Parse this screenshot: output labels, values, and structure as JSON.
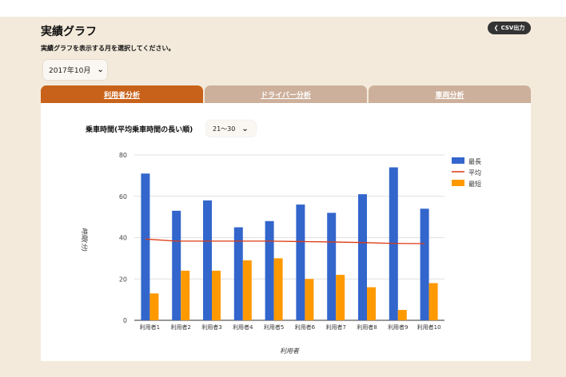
{
  "header": {
    "title": "実績グラフ",
    "csv_button": "CSV出力",
    "csv_icon": "chevron-left-icon",
    "instruction": "実績グラフを表示する月を選択してください。",
    "month_select": "2017年10月"
  },
  "tabs": [
    {
      "label": "利用者分析",
      "active": true
    },
    {
      "label": "ドライバー分析",
      "active": false
    },
    {
      "label": "車両分析",
      "active": false
    }
  ],
  "filter": {
    "label": "乗車時間(平均乗車時間の長い順)",
    "range_select": "21〜30"
  },
  "colors": {
    "accent": "#c8621a",
    "tab_inactive": "#cdb09b",
    "max": "#3366cc",
    "avg": "#dc3912",
    "min": "#ff9900"
  },
  "chart_data": {
    "type": "bar",
    "xlabel": "利用者",
    "ylabel": "時間(分)",
    "ylim": [
      0,
      80
    ],
    "yticks": [
      0,
      20,
      40,
      60,
      80
    ],
    "grid": true,
    "legend": "right",
    "categories": [
      "利用者1",
      "利用者2",
      "利用者3",
      "利用者4",
      "利用者5",
      "利用者6",
      "利用者7",
      "利用者8",
      "利用者9",
      "利用者10"
    ],
    "series": [
      {
        "name": "最長",
        "type": "bar",
        "values": [
          71,
          53,
          58,
          45,
          48,
          56,
          52,
          61,
          74,
          54
        ]
      },
      {
        "name": "平均",
        "type": "line",
        "values": [
          39.3,
          38.3,
          38.3,
          38.3,
          38.3,
          38.1,
          37.9,
          37.6,
          37.2,
          37.1
        ]
      },
      {
        "name": "最短",
        "type": "bar",
        "values": [
          13,
          24,
          24,
          29,
          30,
          20,
          22,
          16,
          5,
          18
        ]
      }
    ]
  }
}
